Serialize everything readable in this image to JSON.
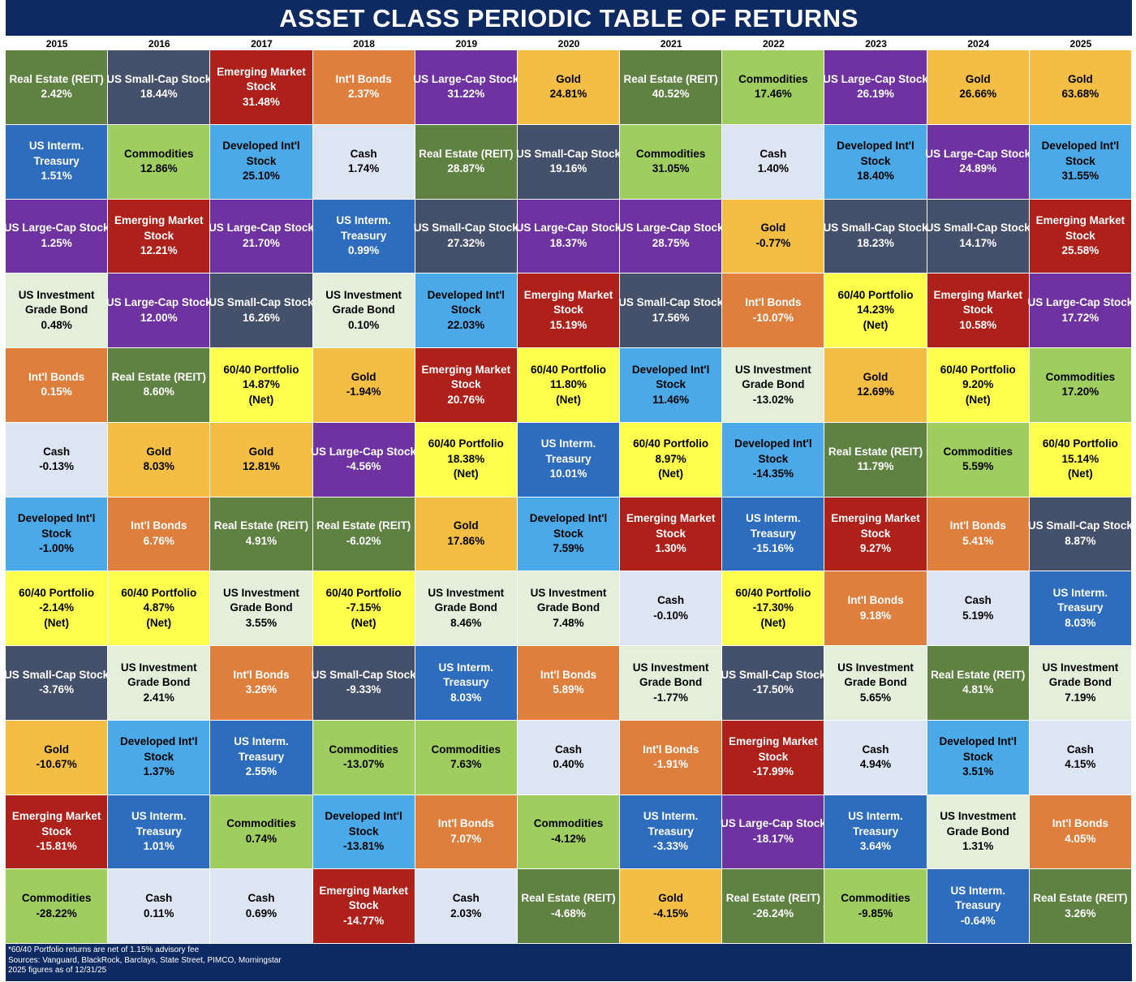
{
  "title": "ASSET CLASS PERIODIC TABLE OF RETURNS",
  "colors": {
    "header_background": "#0e2a62",
    "US Large-Cap Stock": "#6e33a0",
    "US Small-Cap Stock": "#45516a",
    "Developed Int'l Stock": "#4aa9e6",
    "Emerging Market Stock": "#ad211a",
    "US Investment Grade Bond": "#e3eedb",
    "US Interm. Treasury": "#2e6dbe",
    "Int'l Bonds": "#df7f3e",
    "Real Estate (REIT)": "#5f8142",
    "Commodities": "#9fcd5f",
    "Gold": "#f4be45",
    "Cash": "#dde4f2",
    "60/40 Portfolio": "#feff4c"
  },
  "chart_data": {
    "type": "table",
    "title": "ASSET CLASS PERIODIC TABLE OF RETURNS",
    "years": [
      "2015",
      "2016",
      "2017",
      "2018",
      "2019",
      "2020",
      "2021",
      "2022",
      "2023",
      "2024",
      "2025"
    ],
    "columns": [
      [
        {
          "asset": "Real Estate (REIT)",
          "value": "2.42%"
        },
        {
          "asset": "US Interm. Treasury",
          "value": "1.51%"
        },
        {
          "asset": "US Large-Cap Stock",
          "value": "1.25%"
        },
        {
          "asset": "US Investment Grade Bond",
          "value": "0.48%"
        },
        {
          "asset": "Int'l Bonds",
          "value": "0.15%"
        },
        {
          "asset": "Cash",
          "value": "-0.13%"
        },
        {
          "asset": "Developed Int'l Stock",
          "value": "-1.00%"
        },
        {
          "asset": "60/40 Portfolio",
          "value": "-2.14%",
          "note": "(Net)"
        },
        {
          "asset": "US Small-Cap Stock",
          "value": "-3.76%"
        },
        {
          "asset": "Gold",
          "value": "-10.67%"
        },
        {
          "asset": "Emerging Market Stock",
          "value": "-15.81%"
        },
        {
          "asset": "Commodities",
          "value": "-28.22%"
        }
      ],
      [
        {
          "asset": "US Small-Cap Stock",
          "value": "18.44%"
        },
        {
          "asset": "Commodities",
          "value": "12.86%"
        },
        {
          "asset": "Emerging Market Stock",
          "value": "12.21%"
        },
        {
          "asset": "US Large-Cap Stock",
          "value": "12.00%"
        },
        {
          "asset": "Real Estate (REIT)",
          "value": "8.60%"
        },
        {
          "asset": "Gold",
          "value": "8.03%"
        },
        {
          "asset": "Int'l Bonds",
          "value": "6.76%"
        },
        {
          "asset": "60/40 Portfolio",
          "value": "4.87%",
          "note": "(Net)"
        },
        {
          "asset": "US Investment Grade Bond",
          "value": "2.41%"
        },
        {
          "asset": "Developed Int'l Stock",
          "value": "1.37%"
        },
        {
          "asset": "US Interm. Treasury",
          "value": "1.01%"
        },
        {
          "asset": "Cash",
          "value": "0.11%"
        }
      ],
      [
        {
          "asset": "Emerging Market Stock",
          "value": "31.48%"
        },
        {
          "asset": "Developed Int'l Stock",
          "value": "25.10%"
        },
        {
          "asset": "US Large-Cap Stock",
          "value": "21.70%"
        },
        {
          "asset": "US Small-Cap Stock",
          "value": "16.26%"
        },
        {
          "asset": "60/40 Portfolio",
          "value": "14.87%",
          "note": "(Net)"
        },
        {
          "asset": "Gold",
          "value": "12.81%"
        },
        {
          "asset": "Real Estate (REIT)",
          "value": "4.91%"
        },
        {
          "asset": "US Investment Grade Bond",
          "value": "3.55%"
        },
        {
          "asset": "Int'l Bonds",
          "value": "3.26%"
        },
        {
          "asset": "US Interm. Treasury",
          "value": "2.55%"
        },
        {
          "asset": "Commodities",
          "value": "0.74%"
        },
        {
          "asset": "Cash",
          "value": "0.69%"
        }
      ],
      [
        {
          "asset": "Int'l Bonds",
          "value": "2.37%"
        },
        {
          "asset": "Cash",
          "value": "1.74%"
        },
        {
          "asset": "US Interm. Treasury",
          "value": "0.99%"
        },
        {
          "asset": "US Investment Grade Bond",
          "value": "0.10%"
        },
        {
          "asset": "Gold",
          "value": "-1.94%"
        },
        {
          "asset": "US Large-Cap Stock",
          "value": "-4.56%"
        },
        {
          "asset": "Real Estate (REIT)",
          "value": "-6.02%"
        },
        {
          "asset": "60/40 Portfolio",
          "value": "-7.15%",
          "note": "(Net)"
        },
        {
          "asset": "US Small-Cap Stock",
          "value": "-9.33%"
        },
        {
          "asset": "Commodities",
          "value": "-13.07%"
        },
        {
          "asset": "Developed Int'l Stock",
          "value": "-13.81%"
        },
        {
          "asset": "Emerging Market Stock",
          "value": "-14.77%"
        }
      ],
      [
        {
          "asset": "US Large-Cap Stock",
          "value": "31.22%"
        },
        {
          "asset": "Real Estate (REIT)",
          "value": "28.87%"
        },
        {
          "asset": "US Small-Cap Stock",
          "value": "27.32%"
        },
        {
          "asset": "Developed Int'l Stock",
          "value": "22.03%"
        },
        {
          "asset": "Emerging Market Stock",
          "value": "20.76%"
        },
        {
          "asset": "60/40 Portfolio",
          "value": "18.38%",
          "note": "(Net)"
        },
        {
          "asset": "Gold",
          "value": "17.86%"
        },
        {
          "asset": "US Investment Grade Bond",
          "value": "8.46%"
        },
        {
          "asset": "US Interm. Treasury",
          "value": "8.03%"
        },
        {
          "asset": "Commodities",
          "value": "7.63%"
        },
        {
          "asset": "Int'l Bonds",
          "value": "7.07%"
        },
        {
          "asset": "Cash",
          "value": "2.03%"
        }
      ],
      [
        {
          "asset": "Gold",
          "value": "24.81%"
        },
        {
          "asset": "US Small-Cap Stock",
          "value": "19.16%"
        },
        {
          "asset": "US Large-Cap Stock",
          "value": "18.37%"
        },
        {
          "asset": "Emerging Market Stock",
          "value": "15.19%"
        },
        {
          "asset": "60/40 Portfolio",
          "value": "11.80%",
          "note": "(Net)"
        },
        {
          "asset": "US Interm. Treasury",
          "value": "10.01%"
        },
        {
          "asset": "Developed Int'l Stock",
          "value": "7.59%"
        },
        {
          "asset": "US Investment Grade Bond",
          "value": "7.48%"
        },
        {
          "asset": "Int'l Bonds",
          "value": "5.89%"
        },
        {
          "asset": "Cash",
          "value": "0.40%"
        },
        {
          "asset": "Commodities",
          "value": "-4.12%"
        },
        {
          "asset": "Real Estate (REIT)",
          "value": "-4.68%"
        }
      ],
      [
        {
          "asset": "Real Estate (REIT)",
          "value": "40.52%"
        },
        {
          "asset": "Commodities",
          "value": "31.05%"
        },
        {
          "asset": "US Large-Cap Stock",
          "value": "28.75%"
        },
        {
          "asset": "US Small-Cap Stock",
          "value": "17.56%"
        },
        {
          "asset": "Developed Int'l Stock",
          "value": "11.46%"
        },
        {
          "asset": "60/40 Portfolio",
          "value": "8.97%",
          "note": "(Net)"
        },
        {
          "asset": "Emerging Market Stock",
          "value": "1.30%"
        },
        {
          "asset": "Cash",
          "value": "-0.10%"
        },
        {
          "asset": "US Investment Grade Bond",
          "value": "-1.77%"
        },
        {
          "asset": "Int'l Bonds",
          "value": "-1.91%"
        },
        {
          "asset": "US Interm. Treasury",
          "value": "-3.33%"
        },
        {
          "asset": "Gold",
          "value": "-4.15%"
        }
      ],
      [
        {
          "asset": "Commodities",
          "value": "17.46%"
        },
        {
          "asset": "Cash",
          "value": "1.40%"
        },
        {
          "asset": "Gold",
          "value": "-0.77%"
        },
        {
          "asset": "Int'l Bonds",
          "value": "-10.07%"
        },
        {
          "asset": "US Investment Grade Bond",
          "value": "-13.02%"
        },
        {
          "asset": "Developed Int'l Stock",
          "value": "-14.35%"
        },
        {
          "asset": "US Interm. Treasury",
          "value": "-15.16%"
        },
        {
          "asset": "60/40 Portfolio",
          "value": "-17.30%",
          "note": "(Net)"
        },
        {
          "asset": "US Small-Cap Stock",
          "value": "-17.50%"
        },
        {
          "asset": "Emerging Market Stock",
          "value": "-17.99%"
        },
        {
          "asset": "US Large-Cap Stock",
          "value": "-18.17%"
        },
        {
          "asset": "Real Estate (REIT)",
          "value": "-26.24%"
        }
      ],
      [
        {
          "asset": "US Large-Cap Stock",
          "value": "26.19%"
        },
        {
          "asset": "Developed Int'l Stock",
          "value": "18.40%"
        },
        {
          "asset": "US Small-Cap Stock",
          "value": "18.23%"
        },
        {
          "asset": "60/40 Portfolio",
          "value": "14.23%",
          "note": "(Net)"
        },
        {
          "asset": "Gold",
          "value": "12.69%"
        },
        {
          "asset": "Real Estate (REIT)",
          "value": "11.79%"
        },
        {
          "asset": "Emerging Market Stock",
          "value": "9.27%"
        },
        {
          "asset": "Int'l Bonds",
          "value": "9.18%"
        },
        {
          "asset": "US Investment Grade Bond",
          "value": "5.65%"
        },
        {
          "asset": "Cash",
          "value": "4.94%"
        },
        {
          "asset": "US Interm. Treasury",
          "value": "3.64%"
        },
        {
          "asset": "Commodities",
          "value": "-9.85%"
        }
      ],
      [
        {
          "asset": "Gold",
          "value": "26.66%"
        },
        {
          "asset": "US Large-Cap Stock",
          "value": "24.89%"
        },
        {
          "asset": "US Small-Cap Stock",
          "value": "14.17%"
        },
        {
          "asset": "Emerging Market Stock",
          "value": "10.58%"
        },
        {
          "asset": "60/40 Portfolio",
          "value": "9.20%",
          "note": "(Net)"
        },
        {
          "asset": "Commodities",
          "value": "5.59%"
        },
        {
          "asset": "Int'l Bonds",
          "value": "5.41%"
        },
        {
          "asset": "Cash",
          "value": "5.19%"
        },
        {
          "asset": "Real Estate (REIT)",
          "value": "4.81%"
        },
        {
          "asset": "Developed Int'l Stock",
          "value": "3.51%"
        },
        {
          "asset": "US Investment Grade Bond",
          "value": "1.31%"
        },
        {
          "asset": "US Interm. Treasury",
          "value": "-0.64%"
        }
      ],
      [
        {
          "asset": "Gold",
          "value": "63.68%"
        },
        {
          "asset": "Developed Int'l Stock",
          "value": "31.55%"
        },
        {
          "asset": "Emerging Market Stock",
          "value": "25.58%"
        },
        {
          "asset": "US Large-Cap Stock",
          "value": "17.72%"
        },
        {
          "asset": "Commodities",
          "value": "17.20%"
        },
        {
          "asset": "60/40 Portfolio",
          "value": "15.14%",
          "note": "(Net)"
        },
        {
          "asset": "US Small-Cap Stock",
          "value": "8.87%"
        },
        {
          "asset": "US Interm. Treasury",
          "value": "8.03%"
        },
        {
          "asset": "US Investment Grade Bond",
          "value": "7.19%"
        },
        {
          "asset": "Cash",
          "value": "4.15%"
        },
        {
          "asset": "Int'l Bonds",
          "value": "4.05%"
        },
        {
          "asset": "Real Estate (REIT)",
          "value": "3.26%"
        }
      ]
    ]
  },
  "footer": {
    "notes": [
      "*60/40 Portfolio returns are net of 1.15% advisory fee",
      "Sources: Vanguard, BlackRock, Barclays, State Street, PIMCO, Morningstar",
      "2025 figures as of 12/31/25"
    ]
  }
}
